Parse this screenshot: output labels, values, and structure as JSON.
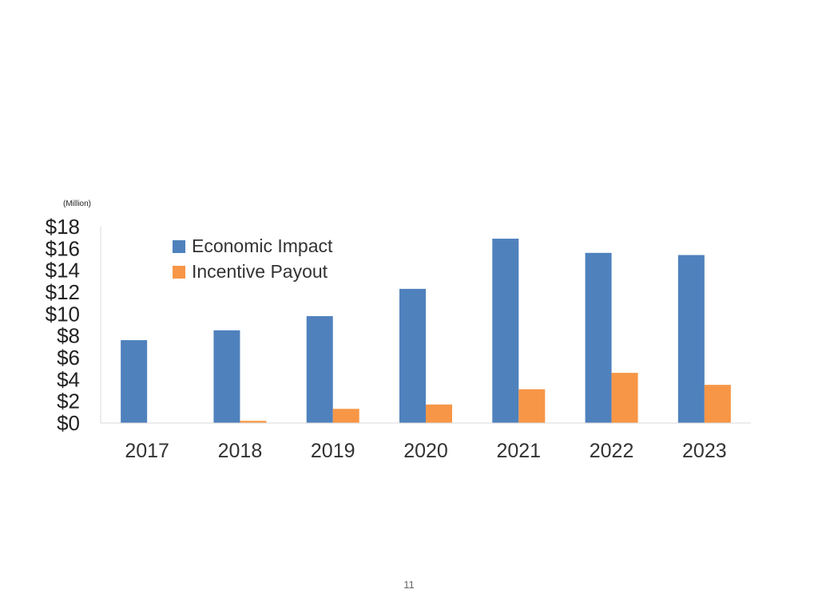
{
  "chart_data": {
    "type": "bar",
    "unit_label": "(Million)",
    "categories": [
      "2017",
      "2018",
      "2019",
      "2020",
      "2021",
      "2022",
      "2023"
    ],
    "series": [
      {
        "name": "Economic Impact",
        "color": "#4f81bd",
        "values": [
          7.6,
          8.5,
          9.8,
          12.3,
          16.9,
          15.6,
          15.4
        ]
      },
      {
        "name": "Incentive Payout",
        "color": "#f79646",
        "values": [
          0,
          0.2,
          1.3,
          1.7,
          3.1,
          4.6,
          3.5
        ]
      }
    ],
    "ylim": [
      0,
      18
    ],
    "yticks": [
      "$0",
      "$2",
      "$4",
      "$6",
      "$8",
      "$10",
      "$12",
      "$14",
      "$16",
      "$18"
    ],
    "legend_position": "top-left",
    "grid": false
  },
  "page_number": "11"
}
